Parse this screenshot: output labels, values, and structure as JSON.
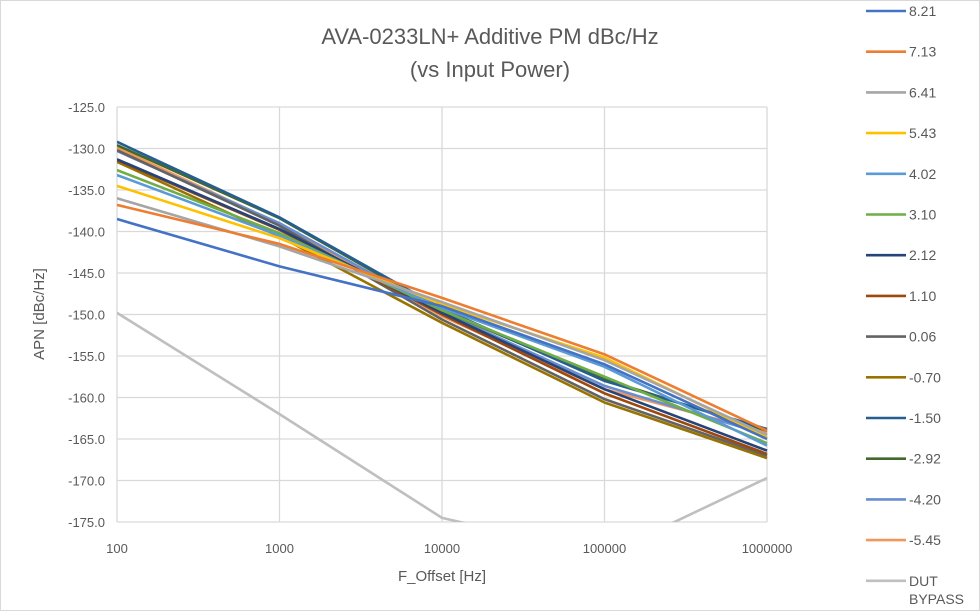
{
  "chart_data": {
    "type": "line",
    "title": "AVA-0233LN+ Additive PM dBc/Hz",
    "subtitle": "(vs Input Power)",
    "xlabel": "F_Offset [Hz]",
    "ylabel": "APN [dBc/Hz]",
    "xscale": "log",
    "x": [
      100,
      1000,
      10000,
      100000,
      1000000
    ],
    "xtick_labels": [
      "100",
      "1000",
      "10000",
      "100000",
      "1000000"
    ],
    "ylim": [
      -175,
      -125
    ],
    "ytick_labels": [
      "-125.0",
      "-130.0",
      "-135.0",
      "-140.0",
      "-145.0",
      "-150.0",
      "-155.0",
      "-160.0",
      "-165.0",
      "-170.0",
      "-175.0"
    ],
    "grid": true,
    "legend_position": "right",
    "series": [
      {
        "name": "8.21",
        "color": "#4472c4",
        "values": [
          -138.5,
          -144.2,
          -149.0,
          -156.0,
          -165.0
        ]
      },
      {
        "name": "7.13",
        "color": "#ed7d31",
        "values": [
          -136.8,
          -141.5,
          -148.0,
          -154.8,
          -164.0
        ]
      },
      {
        "name": "6.41",
        "color": "#a5a5a5",
        "values": [
          -136.0,
          -141.8,
          -148.5,
          -155.5,
          -164.5
        ]
      },
      {
        "name": "5.43",
        "color": "#ffc000",
        "values": [
          -134.5,
          -140.8,
          -148.8,
          -155.2,
          -164.8
        ]
      },
      {
        "name": "4.02",
        "color": "#5b9bd5",
        "values": [
          -133.2,
          -140.5,
          -149.2,
          -156.3,
          -165.8
        ]
      },
      {
        "name": "3.10",
        "color": "#70ad47",
        "values": [
          -132.6,
          -140.2,
          -149.5,
          -157.5,
          -165.5
        ]
      },
      {
        "name": "2.12",
        "color": "#264478",
        "values": [
          -131.3,
          -139.7,
          -149.8,
          -159.0,
          -166.4
        ]
      },
      {
        "name": "1.10",
        "color": "#9e480e",
        "values": [
          -131.4,
          -139.8,
          -150.0,
          -159.5,
          -166.8
        ]
      },
      {
        "name": "0.06",
        "color": "#636363",
        "values": [
          -130.2,
          -139.3,
          -150.6,
          -160.2,
          -167.0
        ]
      },
      {
        "name": "-0.70",
        "color": "#997300",
        "values": [
          -131.6,
          -140.6,
          -151.0,
          -160.6,
          -167.3
        ]
      },
      {
        "name": "-1.50",
        "color": "#255e91",
        "values": [
          -129.2,
          -138.3,
          -149.3,
          -158.0,
          -163.8
        ]
      },
      {
        "name": "-2.92",
        "color": "#43682b",
        "values": [
          -129.6,
          -138.4,
          -149.5,
          -157.8,
          -164.0
        ]
      },
      {
        "name": "-4.20",
        "color": "#698ed0",
        "values": [
          -130.3,
          -139.0,
          -149.7,
          -158.6,
          -164.5
        ]
      },
      {
        "name": "-5.45",
        "color": "#f1975a",
        "values": [
          -129.9,
          -139.1,
          -150.2,
          -159.0,
          -164.2
        ]
      },
      {
        "name": "DUT BYPASS",
        "color": "#bfbfbf",
        "values": [
          -149.8,
          -162.0,
          -174.5,
          -179.0,
          -169.7
        ]
      }
    ]
  }
}
